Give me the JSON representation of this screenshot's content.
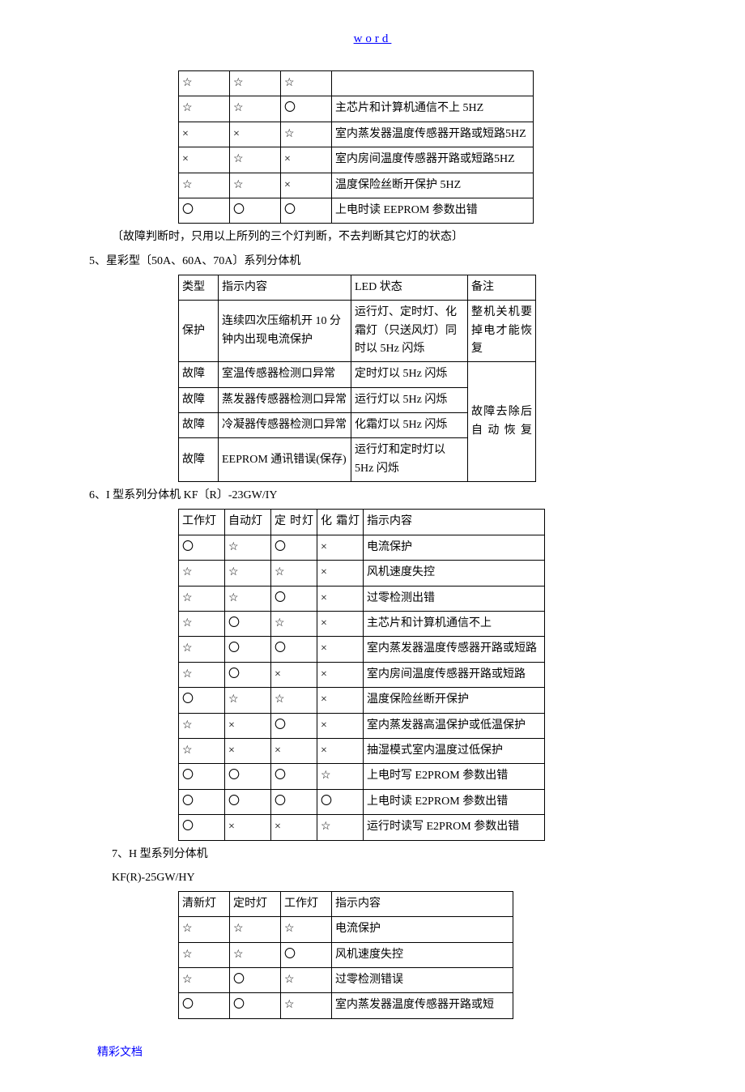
{
  "header": {
    "text": "word"
  },
  "footer": {
    "text": "精彩文档"
  },
  "table1": {
    "rows": [
      [
        "☆",
        "☆",
        "☆",
        ""
      ],
      [
        "☆",
        "☆",
        "〇",
        "主芯片和计算机通信不上 5HZ"
      ],
      [
        "×",
        "×",
        "☆",
        "室内蒸发器温度传感器开路或短路5HZ"
      ],
      [
        "×",
        "☆",
        "×",
        "室内房间温度传感器开路或短路5HZ"
      ],
      [
        "☆",
        "☆",
        "×",
        "温度保险丝断开保护 5HZ"
      ],
      [
        "〇",
        "〇",
        "〇",
        "上电时读 EEPROM 参数出错"
      ]
    ]
  },
  "para1": "〔故障判断时，只用以上所列的三个灯判断，不去判断其它灯的状态〕",
  "para2": "5、星彩型〔50A、60A、70A〕系列分体机",
  "table2": {
    "head": [
      "类型",
      "指示内容",
      "LED 状态",
      "备注"
    ],
    "r1": {
      "c1": "保护",
      "c2": "连续四次压缩机开 10 分钟内出现电流保护",
      "c3": "运行灯、定时灯、化霜灯（只送风灯）同时以 5Hz 闪烁",
      "c4": "整机关机要掉电才能恢复"
    },
    "r2": {
      "c1": "故障",
      "c2": "室温传感器检测口异常",
      "c3": "定时灯以 5Hz 闪烁",
      "c4": "故障去除后自动恢复"
    },
    "r3": {
      "c1": "故障",
      "c2": "蒸发器传感器检测口异常",
      "c3": "运行灯以 5Hz 闪烁"
    },
    "r4": {
      "c1": "故障",
      "c2": "冷凝器传感器检测口异常",
      "c3": "化霜灯以 5Hz 闪烁"
    },
    "r5": {
      "c1": "故障",
      "c2": "EEPROM 通讯错误(保存)",
      "c3": "运行灯和定时灯以5Hz 闪烁"
    }
  },
  "para3": "6、I 型系列分体机 KF〔R〕-23GW/IY",
  "table3": {
    "head": [
      "工作灯",
      "自动灯",
      "定 时灯",
      "化 霜灯",
      "指示内容"
    ],
    "rows": [
      [
        "〇",
        "☆",
        "〇",
        "×",
        "电流保护"
      ],
      [
        "☆",
        "☆",
        "☆",
        "×",
        "风机速度失控"
      ],
      [
        "☆",
        "☆",
        "〇",
        "×",
        "过零检测出错"
      ],
      [
        "☆",
        "〇",
        "☆",
        "×",
        "主芯片和计算机通信不上"
      ],
      [
        "☆",
        "〇",
        "〇",
        "×",
        "室内蒸发器温度传感器开路或短路"
      ],
      [
        "☆",
        "〇",
        "×",
        "×",
        "室内房间温度传感器开路或短路"
      ],
      [
        "〇",
        "☆",
        "☆",
        "×",
        "温度保险丝断开保护"
      ],
      [
        "☆",
        "×",
        "〇",
        "×",
        "室内蒸发器高温保护或低温保护"
      ],
      [
        "☆",
        "×",
        "×",
        "×",
        "抽湿模式室内温度过低保护"
      ],
      [
        "〇",
        "〇",
        "〇",
        "☆",
        "上电时写 E2PROM 参数出错"
      ],
      [
        "〇",
        "〇",
        "〇",
        "〇",
        "上电时读 E2PROM 参数出错"
      ],
      [
        "〇",
        "×",
        "×",
        "☆",
        "运行时读写 E2PROM 参数出错"
      ]
    ]
  },
  "para4": "7、H 型系列分体机",
  "para5": "KF(R)-25GW/HY",
  "table4": {
    "head": [
      "清新灯",
      "定时灯",
      "工作灯",
      "指示内容"
    ],
    "rows": [
      [
        "☆",
        "☆",
        "☆",
        "电流保护"
      ],
      [
        "☆",
        "☆",
        "〇",
        "风机速度失控"
      ],
      [
        "☆",
        "〇",
        "☆",
        "过零检测错误"
      ],
      [
        "〇",
        "〇",
        "☆",
        "室内蒸发器温度传感器开路或短"
      ]
    ]
  }
}
